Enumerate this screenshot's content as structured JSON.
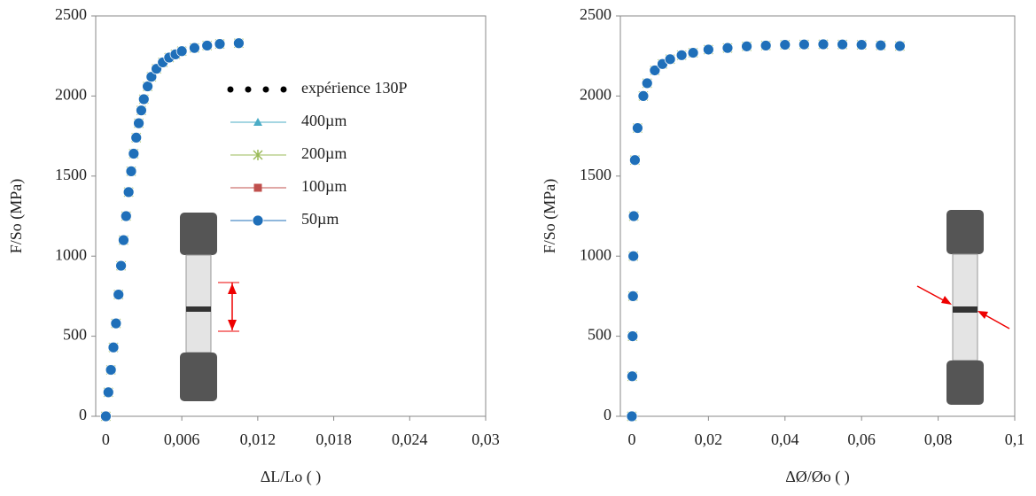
{
  "chart_data": [
    {
      "type": "scatter",
      "xlabel": "ΔL/Lo ( )",
      "ylabel": "F/So  (MPa)",
      "xlim": [
        -0.0008,
        0.03
      ],
      "ylim": [
        0,
        2500
      ],
      "xticks": [
        {
          "value": 0,
          "label": "0"
        },
        {
          "value": 0.006,
          "label": "0,006"
        },
        {
          "value": 0.012,
          "label": "0,012"
        },
        {
          "value": 0.018,
          "label": "0,018"
        },
        {
          "value": 0.024,
          "label": "0,024"
        },
        {
          "value": 0.03,
          "label": "0,03"
        }
      ],
      "yticks": [
        0,
        500,
        1000,
        1500,
        2000,
        2500
      ],
      "legend": "upper center",
      "x": [
        0,
        0.0002,
        0.0004,
        0.0006,
        0.0008,
        0.001,
        0.0012,
        0.0014,
        0.0016,
        0.0018,
        0.002,
        0.0022,
        0.0024,
        0.0026,
        0.0028,
        0.003,
        0.0033,
        0.0036,
        0.004,
        0.0045,
        0.005,
        0.0055,
        0.006,
        0.007,
        0.008,
        0.009,
        0.0105
      ],
      "series": [
        {
          "name": "expérience 130P",
          "color": "#000000",
          "marker": "dot",
          "values": [
            0,
            150,
            290,
            430,
            580,
            760,
            940,
            1100,
            1250,
            1400,
            1530,
            1640,
            1740,
            1830,
            1910,
            1980,
            2060,
            2120,
            2170,
            2210,
            2240,
            2260,
            2280,
            2300,
            2315,
            2325,
            2330
          ]
        },
        {
          "name": "400µm",
          "color": "#4bacc6",
          "marker": "triangle",
          "values": [
            0,
            150,
            290,
            430,
            580,
            760,
            940,
            1100,
            1250,
            1400,
            1530,
            1640,
            1740,
            1830,
            1910,
            1980,
            2060,
            2120,
            2170,
            2210,
            2240,
            2260,
            2280,
            2300,
            2315,
            2325,
            2330
          ]
        },
        {
          "name": "200µm",
          "color": "#9bbb59",
          "marker": "asterisk",
          "values": [
            0,
            150,
            290,
            430,
            580,
            760,
            940,
            1100,
            1250,
            1400,
            1530,
            1640,
            1740,
            1830,
            1910,
            1980,
            2060,
            2120,
            2170,
            2210,
            2240,
            2260,
            2280,
            2300,
            2315,
            2325,
            2330
          ]
        },
        {
          "name": "100µm",
          "color": "#c0504d",
          "marker": "square",
          "values": [
            0,
            150,
            290,
            430,
            580,
            760,
            940,
            1100,
            1250,
            1400,
            1530,
            1640,
            1740,
            1830,
            1910,
            1980,
            2060,
            2120,
            2170,
            2210,
            2240,
            2260,
            2280,
            2300,
            2315,
            2325,
            2330
          ]
        },
        {
          "name": "50µm",
          "color": "#1f6fb9",
          "marker": "circle",
          "values": [
            0,
            150,
            290,
            430,
            580,
            760,
            940,
            1100,
            1250,
            1400,
            1530,
            1640,
            1740,
            1830,
            1910,
            1980,
            2060,
            2120,
            2170,
            2210,
            2240,
            2260,
            2280,
            2300,
            2315,
            2325,
            2330
          ]
        }
      ]
    },
    {
      "type": "scatter",
      "xlabel": "ΔØ/Øo ( )",
      "ylabel": "F/So (MPa)",
      "xlim": [
        -0.003,
        0.1
      ],
      "ylim": [
        0,
        2500
      ],
      "xticks": [
        0,
        {
          "value": 0.02,
          "label": "0,02"
        },
        {
          "value": 0.04,
          "label": "0,04"
        },
        {
          "value": 0.06,
          "label": "0,06"
        },
        {
          "value": 0.08,
          "label": "0,08"
        },
        {
          "value": 0.1,
          "label": "0,1"
        }
      ],
      "yticks": [
        0,
        500,
        1000,
        1500,
        2000,
        2500
      ],
      "x": [
        0,
        0.0001,
        0.0002,
        0.0003,
        0.0004,
        0.0005,
        0.0008,
        0.0015,
        0.003,
        0.004,
        0.006,
        0.008,
        0.01,
        0.013,
        0.016,
        0.02,
        0.025,
        0.03,
        0.035,
        0.04,
        0.045,
        0.05,
        0.055,
        0.06,
        0.065,
        0.07
      ],
      "series": [
        {
          "name": "200µm",
          "color": "#9bbb59",
          "marker": "asterisk",
          "values": [
            0,
            250,
            500,
            750,
            1000,
            1250,
            1600,
            1800,
            2000,
            2080,
            2160,
            2200,
            2230,
            2255,
            2270,
            2290,
            2300,
            2310,
            2315,
            2320,
            2322,
            2323,
            2322,
            2320,
            2316,
            2312
          ]
        },
        {
          "name": "50µm",
          "color": "#1f6fb9",
          "marker": "circle",
          "values": [
            0,
            250,
            500,
            750,
            1000,
            1250,
            1600,
            1800,
            2000,
            2080,
            2160,
            2200,
            2230,
            2255,
            2270,
            2290,
            2300,
            2310,
            2315,
            2320,
            2322,
            2323,
            2322,
            2320,
            2316,
            2312
          ]
        }
      ]
    }
  ]
}
